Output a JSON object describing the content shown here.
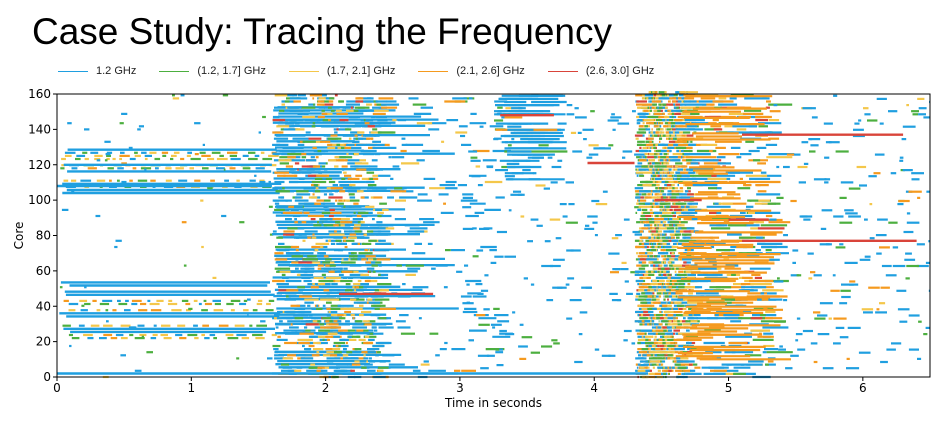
{
  "slide": {
    "title": "Case Study: Tracing the Frequency"
  },
  "chart_data": {
    "type": "timeline",
    "xlabel": "Time in seconds",
    "ylabel": "Core",
    "xlim": [
      0,
      6.5
    ],
    "ylim": [
      0,
      160
    ],
    "x_ticks": [
      0,
      1,
      2,
      3,
      4,
      5,
      6
    ],
    "y_ticks": [
      0,
      20,
      40,
      60,
      80,
      100,
      120,
      140,
      160
    ],
    "grid": false,
    "legend_position": "top",
    "series": [
      {
        "name": "1.2 GHz",
        "color": "#1f9fe0"
      },
      {
        "name": "(1.2, 1.7] GHz",
        "color": "#4caf3f"
      },
      {
        "name": "(1.7, 2.1] GHz",
        "color": "#f4c74a"
      },
      {
        "name": "(2.1, 2.6] GHz",
        "color": "#f59a1e"
      },
      {
        "name": "(2.6, 3.0] GHz",
        "color": "#d9443a"
      }
    ],
    "notable_intervals": [
      {
        "series": "(2.6, 3.0] GHz",
        "core": 137,
        "start": 5.1,
        "end": 6.3
      },
      {
        "series": "(2.6, 3.0] GHz",
        "core": 77,
        "start": 5.1,
        "end": 6.4
      },
      {
        "series": "(2.6, 3.0] GHz",
        "core": 148,
        "start": 3.3,
        "end": 3.7
      },
      {
        "series": "(2.6, 3.0] GHz",
        "core": 121,
        "start": 3.95,
        "end": 4.3
      },
      {
        "series": "(2.6, 3.0] GHz",
        "core": 100,
        "start": 4.45,
        "end": 4.8
      },
      {
        "series": "(2.6, 3.0] GHz",
        "core": 89,
        "start": 5.0,
        "end": 5.3
      },
      {
        "series": "(2.6, 3.0] GHz",
        "core": 47,
        "start": 2.1,
        "end": 2.8
      },
      {
        "series": "1.2 GHz",
        "core": 108,
        "start": 0.0,
        "end": 1.6
      },
      {
        "series": "1.2 GHz",
        "core": 120,
        "start": 0.05,
        "end": 1.6
      },
      {
        "series": "1.2 GHz",
        "core": 2,
        "start": 0.0,
        "end": 4.4
      }
    ]
  }
}
